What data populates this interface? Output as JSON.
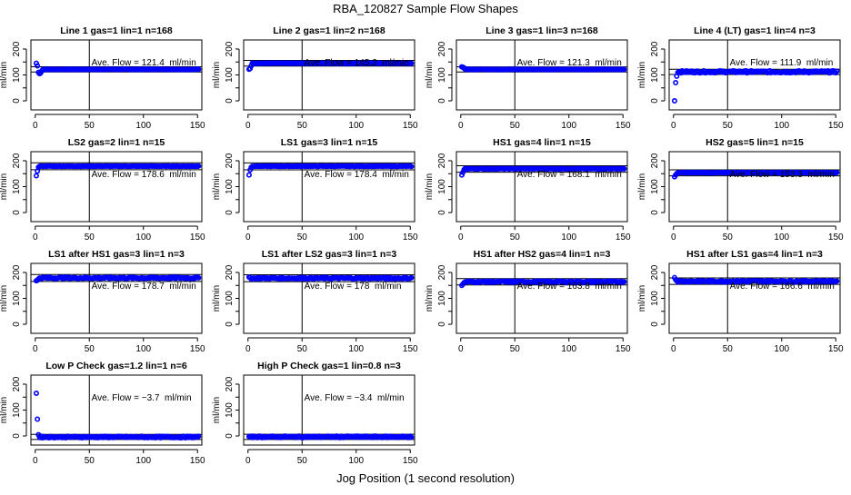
{
  "chart_data": {
    "type": "scatter",
    "title": "RBA_120827  Sample Flow Shapes",
    "xlabel": "Jog Position (1 second resolution)",
    "ylabel": "ml/min",
    "xlim": [
      -4,
      154
    ],
    "ylim": [
      -35,
      235
    ],
    "x_ticks": [
      0,
      50,
      100,
      150
    ],
    "y_ticks": [
      0,
      50,
      100,
      150,
      200
    ],
    "y_tick_labels": [
      "0",
      "",
      "100",
      "",
      "200"
    ],
    "vline_x": 50,
    "band_pct": 7.5,
    "annotation_y": 150,
    "annotation_prefix": "Ave. Flow = ",
    "annotation_suffix": "  ml/min",
    "point_color": "#0000ff",
    "panels": [
      {
        "title": "Line 1 gas=1 lin=1 n=168",
        "avg": "121.4",
        "start": [
          145,
          135,
          110,
          105,
          108,
          115
        ],
        "steady": 121.4,
        "noise": 1
      },
      {
        "title": "Line 2 gas=1 lin=2 n=168",
        "avg": "145.2",
        "start": [
          122,
          125,
          135
        ],
        "steady": 145.2,
        "noise": 1
      },
      {
        "title": "Line 3 gas=1 lin=3 n=168",
        "avg": "121.3",
        "start": [
          131,
          130,
          127
        ],
        "steady": 121.3,
        "noise": 1
      },
      {
        "title": "Line 4 (LT) gas=1 lin=4 n=3",
        "avg": "111.9",
        "start": [
          0,
          70,
          95
        ],
        "steady": 112,
        "noise": 4
      },
      {
        "title": "LS2 gas=2 lin=1 n=15",
        "avg": "178.6",
        "start": [
          142,
          160,
          175
        ],
        "steady": 179,
        "noise": 1
      },
      {
        "title": "LS1 gas=3 lin=1 n=15",
        "avg": "178.4",
        "start": [
          145,
          165,
          175
        ],
        "steady": 179,
        "noise": 1
      },
      {
        "title": "HS1 gas=4 lin=1 n=15",
        "avg": "168.1",
        "start": [
          145,
          155,
          165
        ],
        "steady": 169,
        "noise": 1
      },
      {
        "title": "HS2 gas=5 lin=1 n=15",
        "avg": "153.3",
        "start": [
          138,
          145,
          150
        ],
        "steady": 154,
        "noise": 1
      },
      {
        "title": "LS1 after HS1 gas=3 lin=1 n=3",
        "avg": "178.7",
        "start": [
          168,
          170,
          175
        ],
        "steady": 179,
        "noise": 3
      },
      {
        "title": "LS1 after LS2 gas=3 lin=1 n=3",
        "avg": "178",
        "start": [
          182,
          180
        ],
        "steady": 178,
        "noise": 3
      },
      {
        "title": "HS1 after HS2 gas=4 lin=1 n=3",
        "avg": "163.8",
        "start": [
          150,
          155,
          160
        ],
        "steady": 164,
        "noise": 3
      },
      {
        "title": "HS1 after LS1 gas=4 lin=1 n=3",
        "avg": "166.6",
        "start": [
          180,
          172,
          168
        ],
        "steady": 166,
        "noise": 3
      },
      {
        "title": "Low P Check gas=1.2 lin=1 n=6",
        "avg": "−3.7",
        "start": [
          165,
          65,
          5
        ],
        "steady": -4,
        "noise": 3
      },
      {
        "title": "High P Check gas=1 lin=0.8 n=3",
        "avg": "−3.4",
        "start": [
          -2,
          -3
        ],
        "steady": -3.4,
        "noise": 3
      }
    ]
  }
}
